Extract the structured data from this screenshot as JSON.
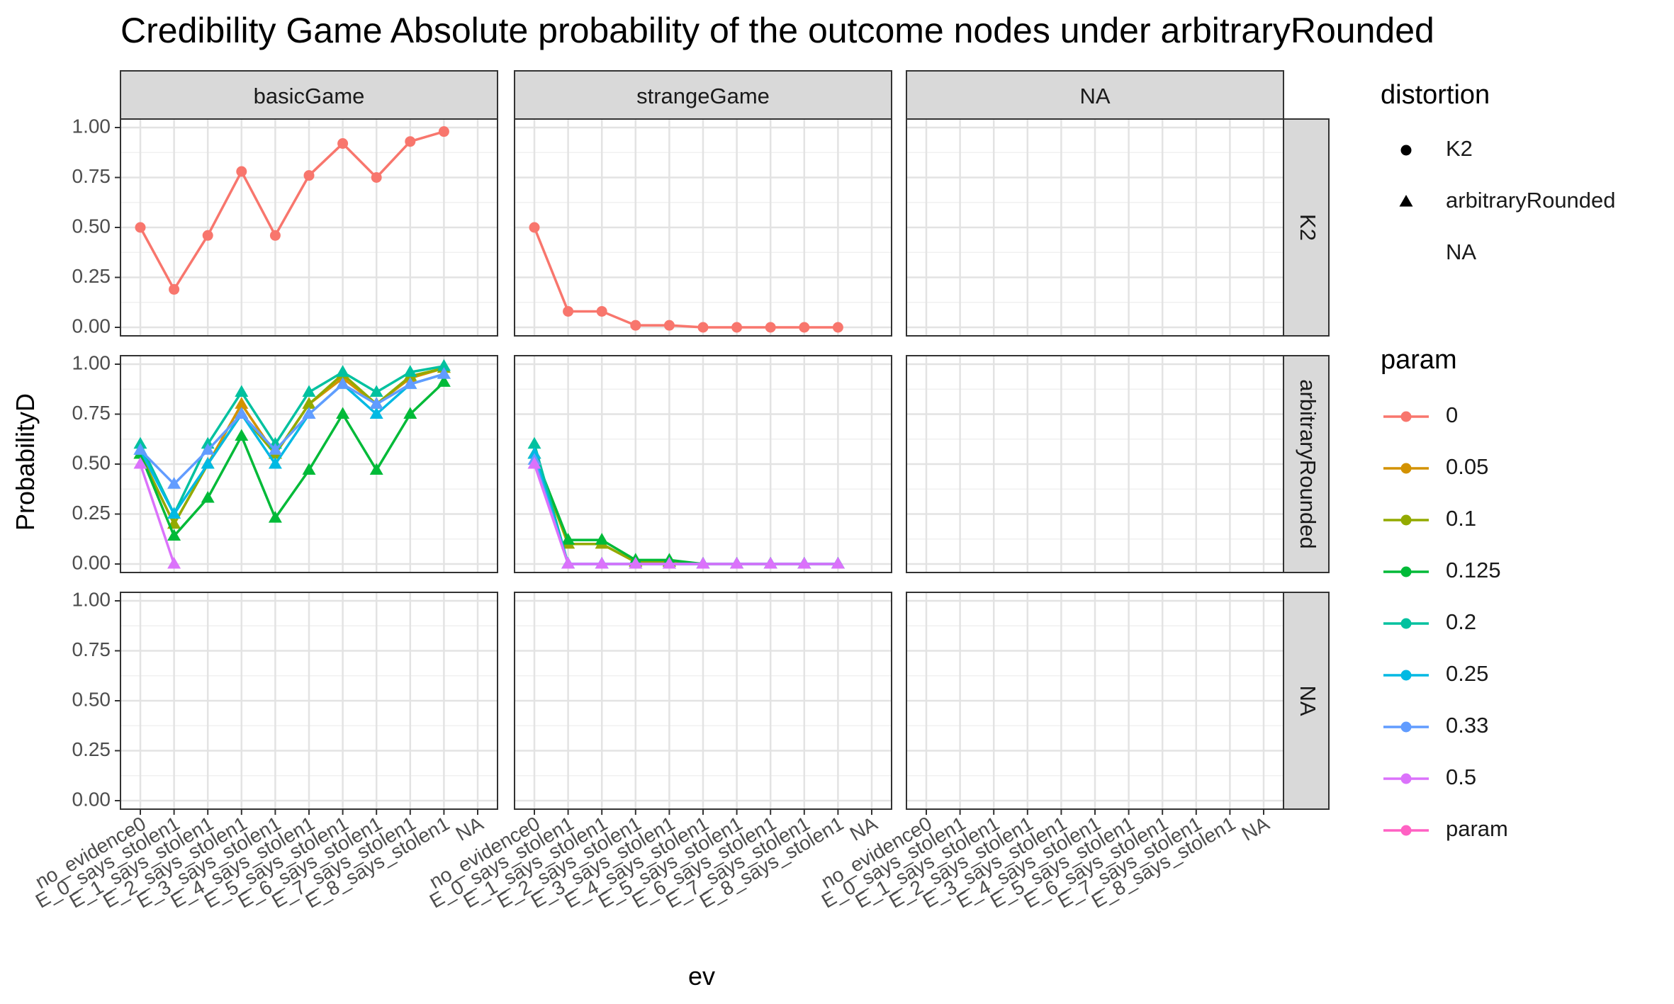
{
  "chart_data": {
    "type": "line",
    "title": "Credibility Game Absolute probability of the outcome nodes under arbitraryRounded",
    "xlabel": "ev",
    "ylabel": "ProbabilityD",
    "ylim": [
      0,
      1
    ],
    "y_ticks": [
      "0.00",
      "0.25",
      "0.50",
      "0.75",
      "1.00"
    ],
    "grid": true,
    "facet_columns": [
      "basicGame",
      "strangeGame",
      "NA"
    ],
    "facet_rows": [
      "K2",
      "arbitraryRounded",
      "NA"
    ],
    "categories": [
      "no_evidence0",
      "E_0_says_stolen1",
      "E_1_says_stolen1",
      "E_2_says_stolen1",
      "E_3_says_stolen1",
      "E_4_says_stolen1",
      "E_5_says_stolen1",
      "E_6_says_stolen1",
      "E_7_says_stolen1",
      "E_8_says_stolen1",
      "NA"
    ],
    "legend": {
      "placement": "right",
      "distortion": {
        "title": "distortion",
        "items": [
          {
            "label": "K2",
            "shape": "circle"
          },
          {
            "label": "arbitraryRounded",
            "shape": "triangle"
          },
          {
            "label": "NA",
            "shape": "none"
          }
        ]
      },
      "param": {
        "title": "param",
        "items": [
          {
            "label": "0",
            "color": "#F8766D"
          },
          {
            "label": "0.05",
            "color": "#D39200"
          },
          {
            "label": "0.1",
            "color": "#93AA00"
          },
          {
            "label": "0.125",
            "color": "#00BA38"
          },
          {
            "label": "0.2",
            "color": "#00C19F"
          },
          {
            "label": "0.25",
            "color": "#00B9E3"
          },
          {
            "label": "0.33",
            "color": "#619CFF"
          },
          {
            "label": "0.5",
            "color": "#DB72FB"
          },
          {
            "label": "param",
            "color": "#FF61C3"
          }
        ]
      }
    },
    "panels": [
      {
        "game": "basicGame",
        "distortion": "K2",
        "series": [
          {
            "param": "0",
            "color": "#F8766D",
            "shape": "circle",
            "values": [
              0.5,
              0.19,
              0.46,
              0.78,
              0.46,
              0.76,
              0.92,
              0.75,
              0.93,
              0.98
            ]
          }
        ]
      },
      {
        "game": "strangeGame",
        "distortion": "K2",
        "series": [
          {
            "param": "0",
            "color": "#F8766D",
            "shape": "circle",
            "values": [
              0.5,
              0.08,
              0.08,
              0.01,
              0.01,
              0.0,
              0.0,
              0.0,
              0.0,
              0.0
            ]
          }
        ]
      },
      {
        "game": "basicGame",
        "distortion": "arbitraryRounded",
        "series": [
          {
            "param": "0.05",
            "color": "#D39200",
            "shape": "triangle",
            "values": [
              0.55,
              0.2,
              0.5,
              0.8,
              0.55,
              0.8,
              0.93,
              0.8,
              0.93,
              0.98
            ]
          },
          {
            "param": "0.1",
            "color": "#93AA00",
            "shape": "triangle",
            "values": [
              0.55,
              0.2,
              0.5,
              0.75,
              0.55,
              0.8,
              0.95,
              0.8,
              0.94,
              0.98
            ]
          },
          {
            "param": "0.125",
            "color": "#00BA38",
            "shape": "triangle",
            "values": [
              0.55,
              0.14,
              0.33,
              0.64,
              0.23,
              0.47,
              0.75,
              0.47,
              0.75,
              0.91
            ]
          },
          {
            "param": "0.2",
            "color": "#00C19F",
            "shape": "triangle",
            "values": [
              0.6,
              0.25,
              0.6,
              0.86,
              0.6,
              0.86,
              0.96,
              0.86,
              0.96,
              0.99
            ]
          },
          {
            "param": "0.25",
            "color": "#00B9E3",
            "shape": "triangle",
            "values": [
              0.57,
              0.25,
              0.5,
              0.75,
              0.5,
              0.75,
              0.9,
              0.75,
              0.9,
              0.95
            ]
          },
          {
            "param": "0.33",
            "color": "#619CFF",
            "shape": "triangle",
            "values": [
              0.57,
              0.4,
              0.57,
              0.75,
              0.57,
              0.75,
              0.9,
              0.8,
              0.9,
              0.95
            ]
          },
          {
            "param": "0.5",
            "color": "#DB72FB",
            "shape": "triangle",
            "values": [
              0.5,
              0.0,
              null,
              null,
              null,
              null,
              null,
              null,
              null,
              null
            ]
          }
        ]
      },
      {
        "game": "strangeGame",
        "distortion": "arbitraryRounded",
        "series": [
          {
            "param": "0.05",
            "color": "#D39200",
            "shape": "triangle",
            "values": [
              0.55,
              0.1,
              0.1,
              0.01,
              0.01,
              0.0,
              0.0,
              0.0,
              0.0,
              0.0
            ]
          },
          {
            "param": "0.1",
            "color": "#93AA00",
            "shape": "triangle",
            "values": [
              0.55,
              0.1,
              0.1,
              0.01,
              0.01,
              0.0,
              0.0,
              0.0,
              0.0,
              0.0
            ]
          },
          {
            "param": "0.125",
            "color": "#00BA38",
            "shape": "triangle",
            "values": [
              0.55,
              0.12,
              0.12,
              0.02,
              0.02,
              0.0,
              0.0,
              0.0,
              0.0,
              0.0
            ]
          },
          {
            "param": "0.2",
            "color": "#00C19F",
            "shape": "triangle",
            "values": [
              0.6,
              0.0,
              0.0,
              0.0,
              0.0,
              0.0,
              0.0,
              0.0,
              0.0,
              0.0
            ]
          },
          {
            "param": "0.25",
            "color": "#00B9E3",
            "shape": "triangle",
            "values": [
              0.55,
              0.0,
              0.0,
              0.0,
              0.0,
              0.0,
              0.0,
              0.0,
              0.0,
              0.0
            ]
          },
          {
            "param": "0.33",
            "color": "#619CFF",
            "shape": "triangle",
            "values": [
              0.52,
              0.0,
              0.0,
              0.0,
              0.0,
              0.0,
              0.0,
              0.0,
              0.0,
              0.0
            ]
          },
          {
            "param": "0.5",
            "color": "#DB72FB",
            "shape": "triangle",
            "values": [
              0.5,
              0.0,
              0.0,
              0.0,
              0.0,
              0.0,
              0.0,
              0.0,
              0.0,
              0.0
            ]
          }
        ]
      }
    ]
  }
}
